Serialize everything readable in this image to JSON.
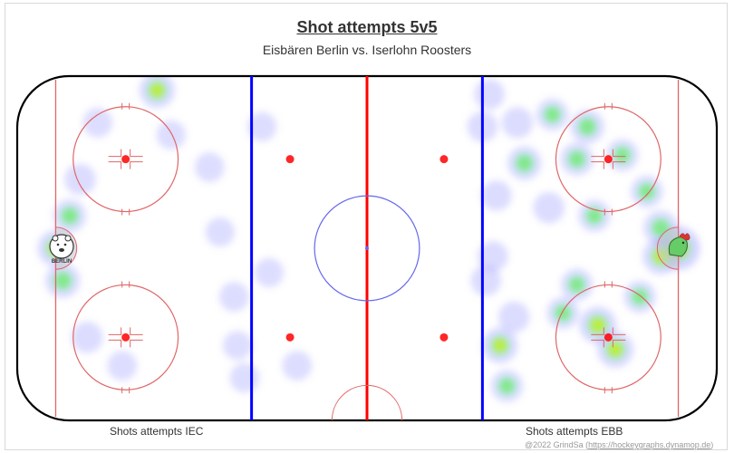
{
  "header": {
    "title": "Shot attempts 5v5",
    "subtitle": "Eisbären Berlin vs. Iserlohn Roosters"
  },
  "labels": {
    "left": "Shots attempts IEC",
    "right": "Shots attempts EBB"
  },
  "credit": {
    "prefix": "@2022 GrindSa (",
    "link": "https://hockeygraphs.dynamop.de",
    "suffix": ")"
  },
  "logos": {
    "left": {
      "text": "BERLIN",
      "icon": "polar-bear-logo"
    },
    "right": {
      "icon": "rooster-logo"
    }
  },
  "colors": {
    "blue_line": "#0000ff",
    "red_line": "#ff0000",
    "circle": "#e06666",
    "center_circle": "#6666ee",
    "heat_low": "#9999ff",
    "heat_mid": "#66ee66",
    "heat_high": "#ff0000"
  },
  "chart_data": {
    "type": "heatmap",
    "title": "Shot attempts 5v5",
    "subtitle": "Eisbären Berlin vs. Iserlohn Roosters",
    "x_range": [
      -100,
      100
    ],
    "y_range": [
      -42.5,
      42.5
    ],
    "series": [
      {
        "name": "Shots attempts IEC",
        "points": [
          {
            "x": -89,
            "y": 0,
            "intensity": 0.55
          },
          {
            "x": -87,
            "y": -8,
            "intensity": 0.45
          },
          {
            "x": -85,
            "y": 8,
            "intensity": 0.35
          },
          {
            "x": -82,
            "y": 17,
            "intensity": 0.25
          },
          {
            "x": -80,
            "y": -22,
            "intensity": 0.25
          },
          {
            "x": -77,
            "y": 31,
            "intensity": 0.15
          },
          {
            "x": -70,
            "y": -29,
            "intensity": 0.15
          },
          {
            "x": -60,
            "y": 39,
            "intensity": 0.5
          },
          {
            "x": -56,
            "y": 28,
            "intensity": 0.12
          },
          {
            "x": -45,
            "y": 20,
            "intensity": 0.15
          },
          {
            "x": -42,
            "y": 4,
            "intensity": 0.12
          },
          {
            "x": -38,
            "y": -12,
            "intensity": 0.15
          },
          {
            "x": -37,
            "y": -24,
            "intensity": 0.12
          },
          {
            "x": -35,
            "y": -32,
            "intensity": 0.15
          },
          {
            "x": -30,
            "y": 30,
            "intensity": 0.12
          },
          {
            "x": -28,
            "y": -6,
            "intensity": 0.12
          },
          {
            "x": -20,
            "y": -29,
            "intensity": 0.15
          }
        ]
      },
      {
        "name": "Shots attempts EBB",
        "points": [
          {
            "x": 89,
            "y": 0,
            "intensity": 1.0
          },
          {
            "x": 84,
            "y": -2,
            "intensity": 0.55
          },
          {
            "x": 84,
            "y": 5,
            "intensity": 0.45
          },
          {
            "x": 80,
            "y": 14,
            "intensity": 0.3
          },
          {
            "x": 78,
            "y": -12,
            "intensity": 0.3
          },
          {
            "x": 73,
            "y": 23,
            "intensity": 0.3
          },
          {
            "x": 71,
            "y": -25,
            "intensity": 0.55
          },
          {
            "x": 66,
            "y": -19,
            "intensity": 0.6
          },
          {
            "x": 65,
            "y": 8,
            "intensity": 0.3
          },
          {
            "x": 63,
            "y": 30,
            "intensity": 0.4
          },
          {
            "x": 60,
            "y": 22,
            "intensity": 0.35
          },
          {
            "x": 60,
            "y": -9,
            "intensity": 0.3
          },
          {
            "x": 56,
            "y": -16,
            "intensity": 0.3
          },
          {
            "x": 53,
            "y": 33,
            "intensity": 0.3
          },
          {
            "x": 52,
            "y": 10,
            "intensity": 0.25
          },
          {
            "x": 45,
            "y": 21,
            "intensity": 0.4
          },
          {
            "x": 43,
            "y": 31,
            "intensity": 0.25
          },
          {
            "x": 42,
            "y": -17,
            "intensity": 0.25
          },
          {
            "x": 40,
            "y": -34,
            "intensity": 0.3
          },
          {
            "x": 38,
            "y": -24,
            "intensity": 0.5
          },
          {
            "x": 37,
            "y": 13,
            "intensity": 0.2
          },
          {
            "x": 36,
            "y": -2,
            "intensity": 0.2
          },
          {
            "x": 35,
            "y": 38,
            "intensity": 0.2
          },
          {
            "x": 34,
            "y": -8,
            "intensity": 0.2
          },
          {
            "x": 33,
            "y": 30,
            "intensity": 0.2
          }
        ]
      }
    ]
  }
}
